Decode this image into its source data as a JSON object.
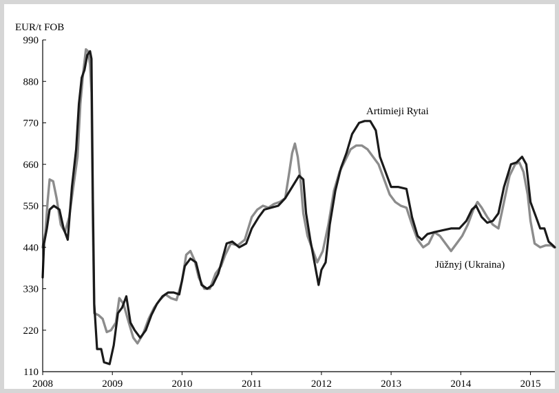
{
  "chart_data": {
    "type": "line",
    "unit_label": "EUR/t FOB",
    "ylim": [
      110,
      990
    ],
    "yticks": [
      110,
      220,
      330,
      440,
      550,
      660,
      770,
      880,
      990
    ],
    "xlim": [
      2008.0,
      2015.35
    ],
    "xticks": [
      2008,
      2009,
      2010,
      2011,
      2012,
      2013,
      2014,
      2015
    ],
    "xtick_labels": [
      "2008",
      "2009",
      "2010",
      "2011",
      "2012",
      "2013",
      "2014",
      "2015"
    ],
    "grid": false,
    "series": [
      {
        "name": "Juzhnyj (Ukraina)",
        "label": "Jūžnyj (Ukraina)",
        "color": "#8c8c8c",
        "points": [
          [
            2008.0,
            440
          ],
          [
            2008.04,
            480
          ],
          [
            2008.07,
            560
          ],
          [
            2008.1,
            620
          ],
          [
            2008.15,
            615
          ],
          [
            2008.2,
            570
          ],
          [
            2008.26,
            500
          ],
          [
            2008.32,
            480
          ],
          [
            2008.38,
            520
          ],
          [
            2008.44,
            600
          ],
          [
            2008.5,
            680
          ],
          [
            2008.54,
            820
          ],
          [
            2008.58,
            900
          ],
          [
            2008.62,
            965
          ],
          [
            2008.65,
            960
          ],
          [
            2008.68,
            925
          ],
          [
            2008.7,
            850
          ],
          [
            2008.72,
            500
          ],
          [
            2008.74,
            265
          ],
          [
            2008.8,
            260
          ],
          [
            2008.86,
            250
          ],
          [
            2008.92,
            215
          ],
          [
            2008.98,
            220
          ],
          [
            2009.05,
            240
          ],
          [
            2009.1,
            305
          ],
          [
            2009.16,
            290
          ],
          [
            2009.22,
            250
          ],
          [
            2009.3,
            200
          ],
          [
            2009.36,
            185
          ],
          [
            2009.44,
            210
          ],
          [
            2009.52,
            250
          ],
          [
            2009.6,
            280
          ],
          [
            2009.68,
            300
          ],
          [
            2009.76,
            315
          ],
          [
            2009.84,
            305
          ],
          [
            2009.92,
            300
          ],
          [
            2010.0,
            350
          ],
          [
            2010.06,
            420
          ],
          [
            2010.12,
            430
          ],
          [
            2010.18,
            405
          ],
          [
            2010.24,
            360
          ],
          [
            2010.32,
            330
          ],
          [
            2010.4,
            330
          ],
          [
            2010.48,
            370
          ],
          [
            2010.56,
            390
          ],
          [
            2010.62,
            420
          ],
          [
            2010.7,
            450
          ],
          [
            2010.8,
            445
          ],
          [
            2010.9,
            460
          ],
          [
            2011.0,
            520
          ],
          [
            2011.08,
            540
          ],
          [
            2011.16,
            550
          ],
          [
            2011.24,
            545
          ],
          [
            2011.32,
            555
          ],
          [
            2011.4,
            560
          ],
          [
            2011.48,
            570
          ],
          [
            2011.54,
            640
          ],
          [
            2011.58,
            690
          ],
          [
            2011.62,
            715
          ],
          [
            2011.66,
            680
          ],
          [
            2011.7,
            620
          ],
          [
            2011.74,
            530
          ],
          [
            2011.8,
            470
          ],
          [
            2011.88,
            430
          ],
          [
            2011.94,
            400
          ],
          [
            2012.02,
            430
          ],
          [
            2012.1,
            500
          ],
          [
            2012.18,
            590
          ],
          [
            2012.26,
            640
          ],
          [
            2012.34,
            670
          ],
          [
            2012.42,
            700
          ],
          [
            2012.5,
            710
          ],
          [
            2012.58,
            710
          ],
          [
            2012.66,
            700
          ],
          [
            2012.74,
            680
          ],
          [
            2012.82,
            660
          ],
          [
            2012.9,
            620
          ],
          [
            2012.98,
            580
          ],
          [
            2013.06,
            560
          ],
          [
            2013.14,
            550
          ],
          [
            2013.22,
            545
          ],
          [
            2013.3,
            500
          ],
          [
            2013.38,
            460
          ],
          [
            2013.46,
            440
          ],
          [
            2013.54,
            450
          ],
          [
            2013.62,
            480
          ],
          [
            2013.7,
            470
          ],
          [
            2013.78,
            450
          ],
          [
            2013.86,
            430
          ],
          [
            2013.94,
            450
          ],
          [
            2014.02,
            470
          ],
          [
            2014.1,
            500
          ],
          [
            2014.18,
            540
          ],
          [
            2014.24,
            560
          ],
          [
            2014.3,
            545
          ],
          [
            2014.38,
            520
          ],
          [
            2014.46,
            500
          ],
          [
            2014.54,
            490
          ],
          [
            2014.62,
            560
          ],
          [
            2014.7,
            630
          ],
          [
            2014.78,
            660
          ],
          [
            2014.84,
            665
          ],
          [
            2014.9,
            640
          ],
          [
            2014.96,
            580
          ],
          [
            2015.0,
            510
          ],
          [
            2015.06,
            450
          ],
          [
            2015.14,
            440
          ],
          [
            2015.22,
            445
          ],
          [
            2015.3,
            445
          ],
          [
            2015.34,
            440
          ]
        ]
      },
      {
        "name": "Artimieji Rytai",
        "label": "Artimieji Rytai",
        "color": "#1a1a1a",
        "points": [
          [
            2008.0,
            360
          ],
          [
            2008.02,
            450
          ],
          [
            2008.06,
            490
          ],
          [
            2008.1,
            540
          ],
          [
            2008.16,
            550
          ],
          [
            2008.24,
            540
          ],
          [
            2008.3,
            490
          ],
          [
            2008.36,
            460
          ],
          [
            2008.42,
            600
          ],
          [
            2008.48,
            700
          ],
          [
            2008.52,
            820
          ],
          [
            2008.56,
            890
          ],
          [
            2008.6,
            910
          ],
          [
            2008.64,
            950
          ],
          [
            2008.68,
            960
          ],
          [
            2008.7,
            940
          ],
          [
            2008.72,
            570
          ],
          [
            2008.74,
            290
          ],
          [
            2008.78,
            170
          ],
          [
            2008.84,
            170
          ],
          [
            2008.88,
            135
          ],
          [
            2008.96,
            130
          ],
          [
            2009.02,
            180
          ],
          [
            2009.08,
            265
          ],
          [
            2009.14,
            280
          ],
          [
            2009.2,
            310
          ],
          [
            2009.26,
            240
          ],
          [
            2009.32,
            220
          ],
          [
            2009.4,
            200
          ],
          [
            2009.48,
            220
          ],
          [
            2009.56,
            260
          ],
          [
            2009.64,
            290
          ],
          [
            2009.72,
            310
          ],
          [
            2009.8,
            320
          ],
          [
            2009.88,
            320
          ],
          [
            2009.96,
            315
          ],
          [
            2010.04,
            390
          ],
          [
            2010.12,
            410
          ],
          [
            2010.2,
            400
          ],
          [
            2010.28,
            340
          ],
          [
            2010.36,
            330
          ],
          [
            2010.44,
            340
          ],
          [
            2010.52,
            370
          ],
          [
            2010.58,
            410
          ],
          [
            2010.64,
            450
          ],
          [
            2010.72,
            455
          ],
          [
            2010.82,
            440
          ],
          [
            2010.92,
            450
          ],
          [
            2011.0,
            490
          ],
          [
            2011.1,
            520
          ],
          [
            2011.18,
            540
          ],
          [
            2011.28,
            545
          ],
          [
            2011.38,
            550
          ],
          [
            2011.48,
            570
          ],
          [
            2011.58,
            600
          ],
          [
            2011.68,
            630
          ],
          [
            2011.74,
            620
          ],
          [
            2011.78,
            530
          ],
          [
            2011.84,
            460
          ],
          [
            2011.9,
            400
          ],
          [
            2011.96,
            340
          ],
          [
            2012.0,
            380
          ],
          [
            2012.06,
            400
          ],
          [
            2012.12,
            500
          ],
          [
            2012.2,
            590
          ],
          [
            2012.28,
            650
          ],
          [
            2012.36,
            690
          ],
          [
            2012.44,
            740
          ],
          [
            2012.54,
            770
          ],
          [
            2012.62,
            775
          ],
          [
            2012.7,
            775
          ],
          [
            2012.78,
            750
          ],
          [
            2012.84,
            680
          ],
          [
            2012.92,
            640
          ],
          [
            2013.0,
            600
          ],
          [
            2013.1,
            600
          ],
          [
            2013.22,
            595
          ],
          [
            2013.3,
            520
          ],
          [
            2013.38,
            470
          ],
          [
            2013.44,
            460
          ],
          [
            2013.52,
            475
          ],
          [
            2013.62,
            480
          ],
          [
            2013.74,
            485
          ],
          [
            2013.86,
            490
          ],
          [
            2013.98,
            490
          ],
          [
            2014.08,
            510
          ],
          [
            2014.16,
            540
          ],
          [
            2014.22,
            550
          ],
          [
            2014.3,
            520
          ],
          [
            2014.38,
            505
          ],
          [
            2014.46,
            510
          ],
          [
            2014.54,
            530
          ],
          [
            2014.62,
            600
          ],
          [
            2014.72,
            660
          ],
          [
            2014.8,
            665
          ],
          [
            2014.88,
            680
          ],
          [
            2014.94,
            660
          ],
          [
            2015.0,
            560
          ],
          [
            2015.08,
            520
          ],
          [
            2015.14,
            490
          ],
          [
            2015.2,
            490
          ],
          [
            2015.26,
            455
          ],
          [
            2015.32,
            445
          ],
          [
            2015.35,
            440
          ]
        ]
      }
    ]
  }
}
